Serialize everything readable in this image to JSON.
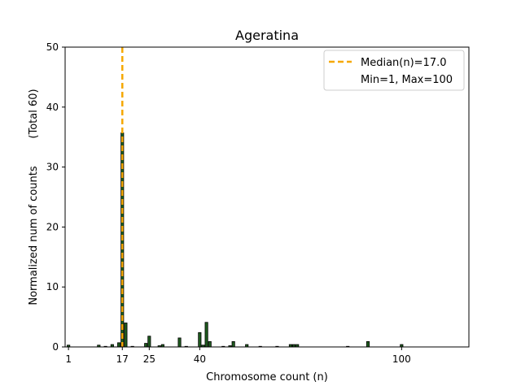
{
  "chart_data": {
    "type": "bar",
    "title": "Ageratina",
    "xlabel": "Chromosome count (n)",
    "ylabel": "Normalized num of counts",
    "ylabel2": "(Total 60)",
    "xlim": [
      0,
      120
    ],
    "ylim": [
      0,
      50
    ],
    "xticks": [
      1,
      17,
      25,
      40,
      100
    ],
    "yticks": [
      0,
      10,
      20,
      30,
      40,
      50
    ],
    "bin_width": 1,
    "bar_color": "#1e5c1e",
    "bar_edge": "#000000",
    "median_color": "#f5a800",
    "median": 17.0,
    "bars": [
      {
        "x": 1,
        "y": 0.3
      },
      {
        "x": 10,
        "y": 0.3
      },
      {
        "x": 12,
        "y": 0.1
      },
      {
        "x": 14,
        "y": 0.4
      },
      {
        "x": 16,
        "y": 0.7
      },
      {
        "x": 17,
        "y": 35.7
      },
      {
        "x": 18,
        "y": 4.0
      },
      {
        "x": 20,
        "y": 0.1
      },
      {
        "x": 24,
        "y": 0.6
      },
      {
        "x": 25,
        "y": 1.8
      },
      {
        "x": 28,
        "y": 0.2
      },
      {
        "x": 29,
        "y": 0.4
      },
      {
        "x": 34,
        "y": 1.5
      },
      {
        "x": 36,
        "y": 0.1
      },
      {
        "x": 40,
        "y": 2.4
      },
      {
        "x": 41,
        "y": 0.3
      },
      {
        "x": 42,
        "y": 4.1
      },
      {
        "x": 43,
        "y": 0.9
      },
      {
        "x": 47,
        "y": 0.1
      },
      {
        "x": 49,
        "y": 0.2
      },
      {
        "x": 50,
        "y": 0.9
      },
      {
        "x": 54,
        "y": 0.4
      },
      {
        "x": 58,
        "y": 0.1
      },
      {
        "x": 63,
        "y": 0.1
      },
      {
        "x": 67,
        "y": 0.4
      },
      {
        "x": 68,
        "y": 0.4
      },
      {
        "x": 69,
        "y": 0.4
      },
      {
        "x": 84,
        "y": 0.1
      },
      {
        "x": 90,
        "y": 0.9
      },
      {
        "x": 100,
        "y": 0.4
      }
    ],
    "legend": {
      "placement": "top-right",
      "entries": [
        "Median(n)=17.0",
        "Min=1, Max=100"
      ]
    }
  }
}
